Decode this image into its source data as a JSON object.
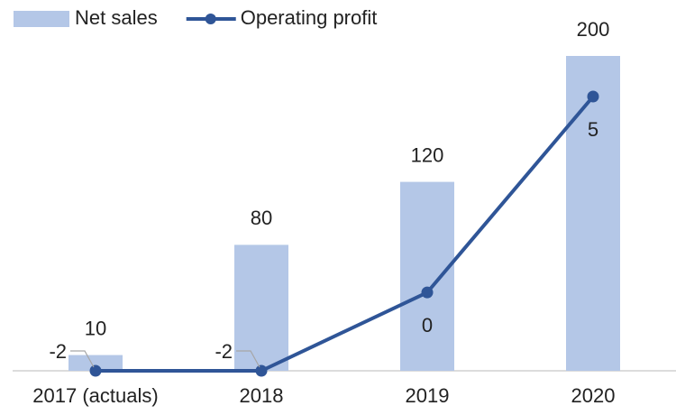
{
  "chart_data": {
    "type": "bar+line",
    "categories": [
      "2017 (actuals)",
      "2018",
      "2019",
      "2020"
    ],
    "series": [
      {
        "name": "Net sales",
        "type": "bar",
        "color": "#b4c7e7",
        "values": [
          10,
          80,
          120,
          200
        ]
      },
      {
        "name": "Operating profit",
        "type": "line",
        "color": "#2f5597",
        "axis": "y2",
        "values": [
          -2,
          -2,
          0,
          5
        ]
      }
    ],
    "ylim": [
      0,
      200
    ],
    "y2lim": [
      -2,
      5
    ],
    "legend": "top-left"
  }
}
